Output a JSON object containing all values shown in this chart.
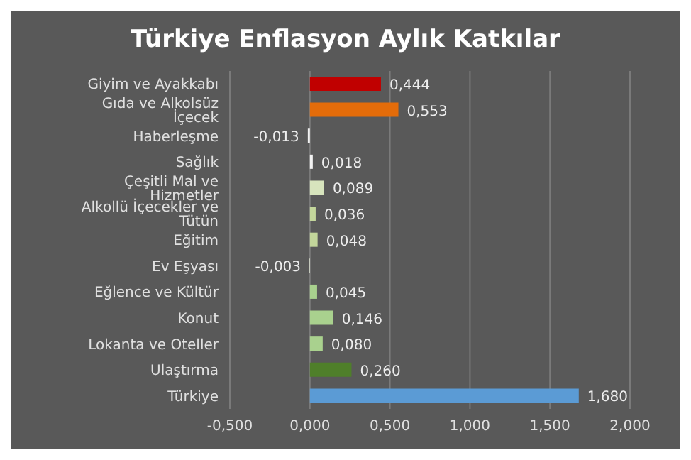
{
  "chart_data": {
    "type": "bar",
    "orientation": "horizontal",
    "title": "Türkiye Enflasyon Aylık Katkılar",
    "categories": [
      "Giyim ve Ayakkabı",
      "Gıda ve Alkolsüz İçecek",
      "Haberleşme",
      "Sağlık",
      "Çeşitli Mal ve Hizmetler",
      "Alkollü İçecekler ve Tütün",
      "Eğitim",
      "Ev Eşyası",
      "Eğlence ve Kültür",
      "Konut",
      "Lokanta ve Oteller",
      "Ulaştırma",
      "Türkiye"
    ],
    "values": [
      0.444,
      0.553,
      -0.013,
      0.018,
      0.089,
      0.036,
      0.048,
      -0.003,
      0.045,
      0.146,
      0.08,
      0.26,
      1.68
    ],
    "value_labels": [
      "0,444",
      "0,553",
      "-0,013",
      "0,018",
      "0,089",
      "0,036",
      "0,048",
      "-0,003",
      "0,045",
      "0,146",
      "0,080",
      "0,260",
      "1,680"
    ],
    "colors": [
      "#c00000",
      "#e46c0a",
      "#f2f2f2",
      "#f2f2f2",
      "#d7e4bd",
      "#c3d69b",
      "#c3d69b",
      "#ebf1de",
      "#a9d18e",
      "#a9d18e",
      "#a9d18e",
      "#4f7f2a",
      "#5b9bd5"
    ],
    "xlim": [
      -0.5,
      2.0
    ],
    "xticks": [
      {
        "value": -0.5,
        "label": "-0,500"
      },
      {
        "value": 0,
        "label": "0,000"
      },
      {
        "value": 0.5,
        "label": "0,500"
      },
      {
        "value": 1.0,
        "label": "1,000"
      },
      {
        "value": 1.5,
        "label": "1,500"
      },
      {
        "value": 2.0,
        "label": "2,000"
      }
    ],
    "grid": "x",
    "legend": false
  }
}
